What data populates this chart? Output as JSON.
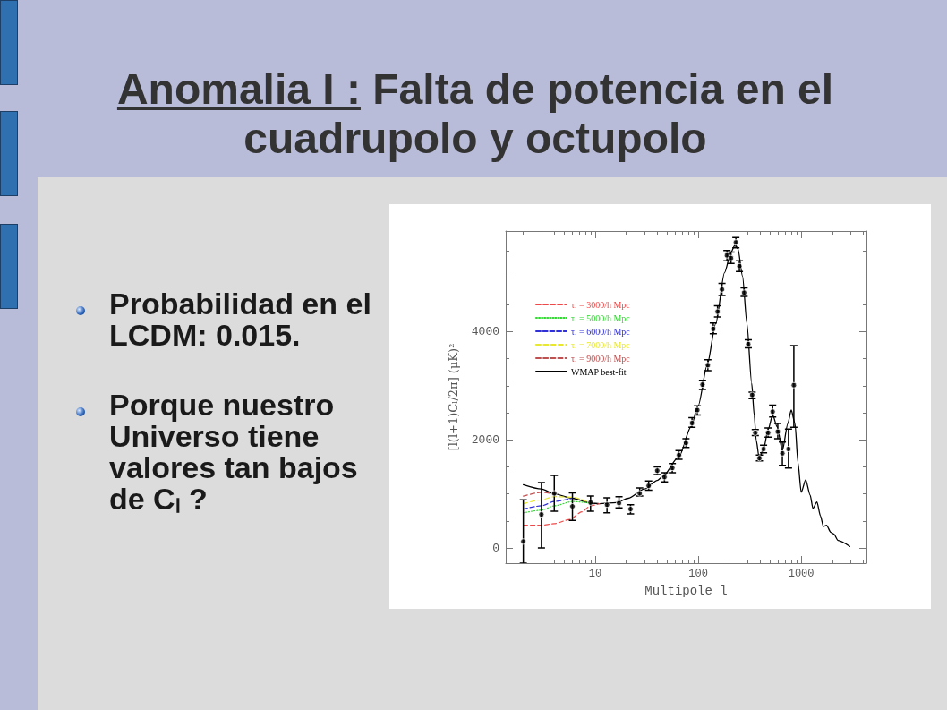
{
  "chart_data": {
    "type": "line",
    "title": "Anomalia I : Falta de potencia en el cuadrupolo y octupolo",
    "annotations": [
      "Probabilidad en el LCDM: 0.015.",
      "Porque nuestro Universo tiene valores tan bajos de Cₗ ?"
    ],
    "xlabel": "Multipole l",
    "ylabel": "[l(l+1)Cₗ/2π] (μK)²",
    "log": "x",
    "xlim": [
      1.35,
      4300
    ],
    "xticks": [
      {
        "value": 2,
        "label": null
      },
      {
        "value": 3,
        "label": null
      },
      {
        "value": 4,
        "label": null
      },
      {
        "value": 5,
        "label": null
      },
      {
        "value": 6,
        "label": null
      },
      {
        "value": 7,
        "label": null
      },
      {
        "value": 8,
        "label": null
      },
      {
        "value": 9,
        "label": null
      },
      10,
      {
        "value": 20,
        "label": null
      },
      {
        "value": 30,
        "label": null
      },
      {
        "value": 40,
        "label": null
      },
      {
        "value": 50,
        "label": null
      },
      {
        "value": 60,
        "label": null
      },
      {
        "value": 70,
        "label": null
      },
      {
        "value": 80,
        "label": null
      },
      {
        "value": 90,
        "label": null
      },
      100,
      {
        "value": 200,
        "label": null
      },
      {
        "value": 300,
        "label": null
      },
      {
        "value": 400,
        "label": null
      },
      {
        "value": 500,
        "label": null
      },
      {
        "value": 600,
        "label": null
      },
      {
        "value": 700,
        "label": null
      },
      {
        "value": 800,
        "label": null
      },
      {
        "value": 900,
        "label": null
      },
      1000,
      {
        "value": 2000,
        "label": null
      },
      {
        "value": 3000,
        "label": null
      },
      {
        "value": 4000,
        "label": null
      }
    ],
    "ylim": [
      -280,
      5860
    ],
    "yticks": [
      0,
      {
        "value": 500,
        "label": null
      },
      {
        "value": 1000,
        "label": null
      },
      {
        "value": 1500,
        "label": null
      },
      2000,
      {
        "value": 2500,
        "label": null
      },
      {
        "value": 3000,
        "label": null
      },
      {
        "value": 3500,
        "label": null
      },
      4000,
      {
        "value": 4500,
        "label": null
      },
      {
        "value": 5000,
        "label": null
      },
      {
        "value": 5500,
        "label": null
      }
    ],
    "legend": "top left",
    "series": [
      {
        "name": "τ. = 3000/h Mpc",
        "color": "#f04848",
        "line_style": "dashed",
        "x": [
          2,
          3,
          4,
          5.7,
          7.4,
          9,
          11
        ],
        "values": [
          420,
          420,
          450,
          530,
          670,
          780,
          820
        ]
      },
      {
        "name": "τ. = 5000/h Mpc",
        "color": "#30d830",
        "line_style": "dotted",
        "x": [
          2,
          3,
          4,
          6,
          9
        ],
        "values": [
          650,
          700,
          780,
          860,
          830
        ]
      },
      {
        "name": "τ. = 6000/h Mpc",
        "color": "#3030d8",
        "line_style": "dashed",
        "x": [
          2,
          3,
          4,
          6
        ],
        "values": [
          720,
          780,
          860,
          920
        ]
      },
      {
        "name": "τ. = 7000/h Mpc",
        "color": "#e8e830",
        "line_style": "dashed",
        "x": [
          2,
          3,
          4,
          6,
          9
        ],
        "values": [
          820,
          890,
          950,
          940,
          830
        ]
      },
      {
        "name": "τ. = 9000/h Mpc",
        "color": "#c05050",
        "line_style": "dashed",
        "x": [
          2,
          3,
          4
        ],
        "values": [
          960,
          1030,
          1000
        ]
      },
      {
        "name": "WMAP best-fit",
        "color": "#000000",
        "line_style": "solid",
        "x": [
          2,
          3,
          4,
          6,
          9,
          11,
          16,
          21,
          30,
          40,
          45,
          65,
          85,
          100,
          122,
          148,
          180,
          208,
          229,
          243,
          269,
          297,
          330,
          350,
          365,
          391,
          431,
          477,
          528,
          584,
          656,
          741,
          800,
          870,
          930,
          1000,
          1105,
          1220,
          1300,
          1420,
          1540,
          1640,
          1760,
          1940,
          2070,
          2280,
          2960
        ],
        "values": [
          1170,
          1090,
          1000,
          920,
          830,
          820,
          840,
          920,
          1090,
          1250,
          1320,
          1690,
          2240,
          2630,
          3380,
          4150,
          5090,
          5470,
          5610,
          5530,
          5030,
          4150,
          3050,
          2450,
          2000,
          1660,
          1830,
          2190,
          2460,
          2240,
          1800,
          2300,
          2550,
          2300,
          1580,
          1030,
          1260,
          980,
          730,
          850,
          590,
          400,
          420,
          290,
          260,
          140,
          30
        ]
      },
      {
        "type": "scatter",
        "color": "#000000",
        "marker": "circle",
        "x": [
          2,
          3,
          4,
          6,
          9,
          13,
          17,
          22,
          27,
          33,
          40,
          47,
          56,
          65,
          76,
          87,
          98,
          110,
          124,
          140,
          154,
          170,
          190,
          208,
          232,
          251,
          279,
          306,
          334,
          358,
          393,
          431,
          477,
          528,
          592,
          656,
          752,
          848
        ],
        "values": [
          120,
          620,
          1010,
          770,
          840,
          800,
          830,
          720,
          1010,
          1150,
          1430,
          1310,
          1480,
          1720,
          1940,
          2310,
          2550,
          3020,
          3380,
          4050,
          4370,
          4780,
          5410,
          5360,
          5650,
          5210,
          4720,
          3770,
          2830,
          2130,
          1660,
          1830,
          2130,
          2520,
          2150,
          1750,
          1830,
          3010
        ],
        "errors": [
          [
            -280,
            890
          ],
          [
            0,
            1210
          ],
          [
            680,
            1340
          ],
          [
            510,
            1020
          ],
          [
            680,
            960
          ],
          [
            650,
            930
          ],
          [
            740,
            950
          ],
          [
            630,
            800
          ],
          [
            960,
            1110
          ],
          [
            1070,
            1240
          ],
          [
            1360,
            1500
          ],
          [
            1220,
            1390
          ],
          [
            1390,
            1560
          ],
          [
            1640,
            1800
          ],
          [
            1860,
            2020
          ],
          [
            2230,
            2410
          ],
          [
            2460,
            2630
          ],
          [
            2930,
            3100
          ],
          [
            3280,
            3480
          ],
          [
            3960,
            4160
          ],
          [
            4270,
            4480
          ],
          [
            4670,
            4890
          ],
          [
            5310,
            5500
          ],
          [
            5260,
            5470
          ],
          [
            5550,
            5740
          ],
          [
            5110,
            5310
          ],
          [
            4650,
            4810
          ],
          [
            3700,
            3850
          ],
          [
            2760,
            2880
          ],
          [
            2080,
            2190
          ],
          [
            1610,
            1720
          ],
          [
            1760,
            1900
          ],
          [
            2050,
            2220
          ],
          [
            2420,
            2640
          ],
          [
            2020,
            2300
          ],
          [
            1530,
            1960
          ],
          [
            1480,
            2200
          ],
          [
            2230,
            3740
          ]
        ]
      }
    ]
  }
}
